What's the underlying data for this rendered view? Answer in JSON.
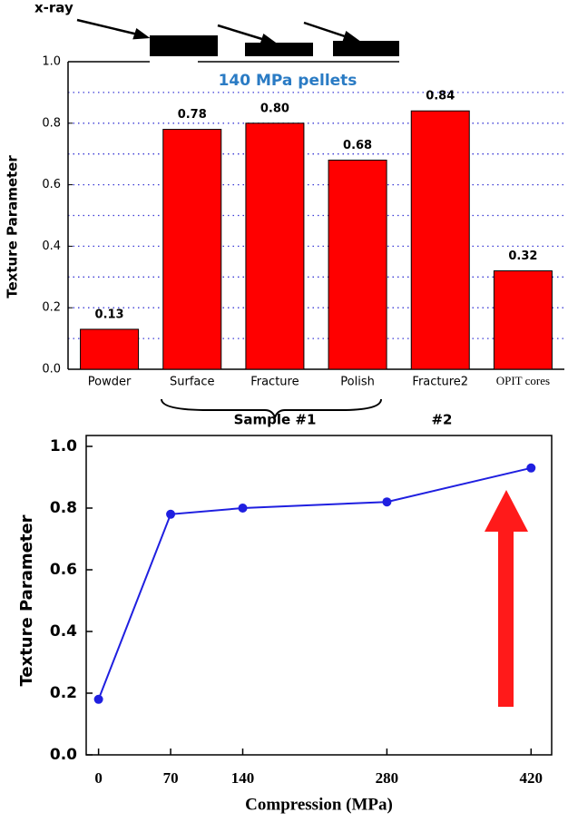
{
  "chart_data": [
    {
      "type": "bar",
      "annotations": {
        "xray": "x-ray",
        "pellets": "140 MPa pellets",
        "sample1": "Sample #1",
        "sample2": "#2"
      },
      "y_label": "Texture Parameter",
      "categories": [
        "Powder",
        "Surface",
        "Fracture",
        "Polish",
        "Fracture2",
        "OPIT cores"
      ],
      "values": [
        0.13,
        0.78,
        0.8,
        0.68,
        0.84,
        0.32
      ],
      "value_labels": [
        "0.13",
        "0.78",
        "0.80",
        "0.68",
        "0.84",
        "0.32"
      ],
      "color": "#ff0000",
      "ylim": [
        0,
        1
      ],
      "yticks": [
        {
          "value": 0,
          "label": "0.0"
        },
        {
          "value": 0.2,
          "label": "0.2"
        },
        {
          "value": 0.4,
          "label": "0.4"
        },
        {
          "value": 0.6,
          "label": "0.6"
        },
        {
          "value": 0.8,
          "label": "0.8"
        },
        {
          "value": 1,
          "label": "1.0"
        }
      ],
      "minor_yticks": [
        0.1,
        0.3,
        0.5,
        0.7,
        0.9
      ],
      "grid": true,
      "grid_color": "#3b3bd6"
    },
    {
      "type": "line",
      "x_label": "Compression (MPa)",
      "y_label": "Texture Parameter",
      "x": [
        0,
        70,
        140,
        280,
        420
      ],
      "values": [
        0.18,
        0.78,
        0.8,
        0.82,
        0.93
      ],
      "color": "#1f1fe0",
      "xlim": [
        -12,
        440
      ],
      "xticks": [
        0,
        70,
        140,
        280,
        420
      ],
      "ylim": [
        0,
        1
      ],
      "yticks": [
        {
          "value": 0,
          "label": "0.0"
        },
        {
          "value": 0.2,
          "label": "0.2"
        },
        {
          "value": 0.4,
          "label": "0.4"
        },
        {
          "value": 0.6,
          "label": "0.6"
        },
        {
          "value": 0.8,
          "label": "0.8"
        },
        {
          "value": 1,
          "label": "1.0"
        }
      ],
      "grid": false
    }
  ]
}
